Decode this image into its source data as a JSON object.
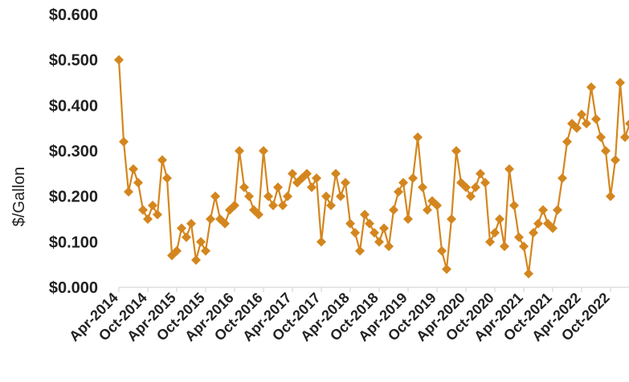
{
  "chart_data": {
    "type": "line",
    "ylabel": "$/Gallon",
    "xlabel": "",
    "ylim": [
      0,
      0.6
    ],
    "y_ticks": [
      "$0.000",
      "$0.100",
      "$0.200",
      "$0.300",
      "$0.400",
      "$0.500",
      "$0.600"
    ],
    "x_ticks": [
      "Apr-2014",
      "Oct-2014",
      "Apr-2015",
      "Oct-2015",
      "Apr-2016",
      "Oct-2016",
      "Apr-2017",
      "Oct-2017",
      "Apr-2018",
      "Oct-2018",
      "Apr-2019",
      "Oct-2019",
      "Apr-2020",
      "Oct-2020",
      "Apr-2021",
      "Oct-2021",
      "Apr-2022",
      "Oct-2022"
    ],
    "xlim": [
      "2014-04",
      "2023-02"
    ],
    "grid": false,
    "legend": "none",
    "series": [
      {
        "color": "#D4861E",
        "marker": "diamond",
        "x": [
          "2014-04",
          "2014-05",
          "2014-06",
          "2014-07",
          "2014-08",
          "2014-09",
          "2014-10",
          "2014-11",
          "2014-12",
          "2015-01",
          "2015-02",
          "2015-03",
          "2015-04",
          "2015-05",
          "2015-06",
          "2015-07",
          "2015-08",
          "2015-09",
          "2015-10",
          "2015-11",
          "2015-12",
          "2016-01",
          "2016-02",
          "2016-03",
          "2016-04",
          "2016-05",
          "2016-06",
          "2016-07",
          "2016-08",
          "2016-09",
          "2016-10",
          "2016-11",
          "2016-12",
          "2017-01",
          "2017-02",
          "2017-03",
          "2017-04",
          "2017-05",
          "2017-06",
          "2017-07",
          "2017-08",
          "2017-09",
          "2017-10",
          "2017-11",
          "2017-12",
          "2018-01",
          "2018-02",
          "2018-03",
          "2018-04",
          "2018-05",
          "2018-06",
          "2018-07",
          "2018-08",
          "2018-09",
          "2018-10",
          "2018-11",
          "2018-12",
          "2019-01",
          "2019-02",
          "2019-03",
          "2019-04",
          "2019-05",
          "2019-06",
          "2019-07",
          "2019-08",
          "2019-09",
          "2019-10",
          "2019-11",
          "2019-12",
          "2020-01",
          "2020-02",
          "2020-03",
          "2020-04",
          "2020-05",
          "2020-06",
          "2020-07",
          "2020-08",
          "2020-09",
          "2020-10",
          "2020-11",
          "2020-12",
          "2021-01",
          "2021-02",
          "2021-03",
          "2021-04",
          "2021-05",
          "2021-06",
          "2021-07",
          "2021-08",
          "2021-09",
          "2021-10",
          "2021-11",
          "2021-12",
          "2022-01",
          "2022-02",
          "2022-03",
          "2022-04",
          "2022-05",
          "2022-06",
          "2022-07",
          "2022-08",
          "2022-09",
          "2022-10",
          "2022-11",
          "2022-12",
          "2023-01",
          "2023-02"
        ],
        "values": [
          0.5,
          0.32,
          0.21,
          0.26,
          0.23,
          0.17,
          0.15,
          0.18,
          0.16,
          0.28,
          0.24,
          0.07,
          0.08,
          0.13,
          0.11,
          0.14,
          0.06,
          0.1,
          0.08,
          0.15,
          0.2,
          0.15,
          0.14,
          0.17,
          0.18,
          0.3,
          0.22,
          0.2,
          0.17,
          0.16,
          0.3,
          0.2,
          0.18,
          0.22,
          0.18,
          0.2,
          0.25,
          0.23,
          0.24,
          0.25,
          0.22,
          0.24,
          0.1,
          0.2,
          0.18,
          0.25,
          0.2,
          0.23,
          0.14,
          0.12,
          0.08,
          0.16,
          0.14,
          0.12,
          0.1,
          0.13,
          0.09,
          0.17,
          0.21,
          0.23,
          0.15,
          0.24,
          0.33,
          0.22,
          0.17,
          0.19,
          0.18,
          0.08,
          0.04,
          0.15,
          0.3,
          0.23,
          0.22,
          0.2,
          0.22,
          0.25,
          0.23,
          0.1,
          0.12,
          0.15,
          0.09,
          0.26,
          0.18,
          0.11,
          0.09,
          0.03,
          0.12,
          0.14,
          0.17,
          0.14,
          0.13,
          0.17,
          0.24,
          0.32,
          0.36,
          0.35,
          0.38,
          0.36,
          0.44,
          0.37,
          0.33,
          0.3,
          0.2,
          0.28,
          0.45,
          0.33,
          0.36
        ]
      }
    ]
  }
}
